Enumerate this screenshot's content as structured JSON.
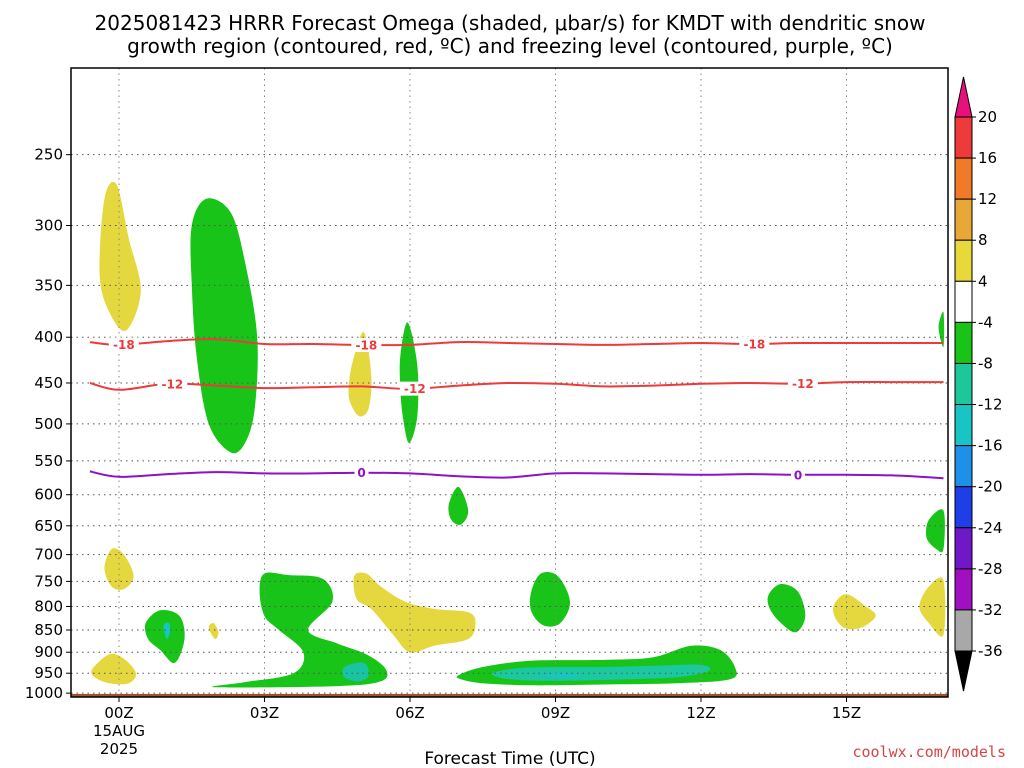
{
  "title_line1": "2025081423 HRRR Forecast Omega (shaded, μbar/s) for KMDT with dendritic snow",
  "title_line2": "growth region (contoured, red, ºC) and freezing level (contoured, purple, ºC)",
  "credit": "coolwx.com/models",
  "chart_data": {
    "type": "time-height cross section",
    "xlabel": "Forecast Time (UTC)",
    "x_ticks": [
      {
        "hour": 0,
        "label": "00Z",
        "sub1": "15AUG",
        "sub2": "2025"
      },
      {
        "hour": 3,
        "label": "03Z"
      },
      {
        "hour": 6,
        "label": "06Z"
      },
      {
        "hour": 9,
        "label": "09Z"
      },
      {
        "hour": 12,
        "label": "12Z"
      },
      {
        "hour": 15,
        "label": "15Z"
      }
    ],
    "xlim": [
      -0.6,
      17
    ],
    "ylabel": "",
    "y_ticks": [
      250,
      300,
      350,
      400,
      450,
      500,
      550,
      600,
      650,
      700,
      750,
      800,
      850,
      900,
      950,
      1000
    ],
    "ylim": [
      1010,
      200
    ],
    "y_scale": "log pressure (hPa)",
    "grid": "dotted",
    "ground_level_hPa": 1000,
    "colorbar": {
      "ticks": [
        "20",
        "16",
        "12",
        "8",
        "4",
        "-4",
        "-8",
        "-12",
        "-16",
        "-20",
        "-24",
        "-28",
        "-32",
        "-36"
      ],
      "colors": [
        "#e8107a",
        "#ee3a3a",
        "#f07a28",
        "#e8a838",
        "#e8d83a",
        "#ffffff",
        "#18c418",
        "#1cc89a",
        "#18c4c4",
        "#1e90e8",
        "#1e3ee8",
        "#7018c8",
        "#a010c0",
        "#a8a8a8",
        "#000000"
      ]
    },
    "omega_regions": [
      {
        "color": "#e5d83e",
        "value": "4 to 8",
        "pts": [
          [
            -0.3,
            280
          ],
          [
            -0.05,
            270
          ],
          [
            0.2,
            310
          ],
          [
            0.45,
            355
          ],
          [
            0.15,
            393
          ],
          [
            -0.2,
            375
          ],
          [
            -0.4,
            340
          ]
        ]
      },
      {
        "color": "#18c418",
        "value": "-4 to -8",
        "pts": [
          [
            1.5,
            300
          ],
          [
            1.8,
            280
          ],
          [
            2.3,
            290
          ],
          [
            2.6,
            330
          ],
          [
            2.85,
            400
          ],
          [
            2.8,
            480
          ],
          [
            2.6,
            525
          ],
          [
            2.3,
            538
          ],
          [
            1.85,
            500
          ],
          [
            1.6,
            420
          ],
          [
            1.5,
            350
          ]
        ]
      },
      {
        "color": "#e5d83e",
        "value": "4 to 8",
        "pts": [
          [
            4.75,
            445
          ],
          [
            4.85,
            420
          ],
          [
            5.05,
            395
          ],
          [
            5.2,
            440
          ],
          [
            5.15,
            480
          ],
          [
            4.95,
            490
          ],
          [
            4.75,
            470
          ]
        ]
      },
      {
        "color": "#18c418",
        "value": "-4 to -8",
        "pts": [
          [
            5.8,
            420
          ],
          [
            5.95,
            385
          ],
          [
            6.15,
            430
          ],
          [
            6.15,
            490
          ],
          [
            5.98,
            525
          ],
          [
            5.85,
            490
          ],
          [
            5.8,
            455
          ]
        ]
      },
      {
        "color": "#18c418",
        "value": "-4 to -8",
        "pts": [
          [
            6.8,
            615
          ],
          [
            7.0,
            588
          ],
          [
            7.2,
            625
          ],
          [
            7.05,
            648
          ],
          [
            6.85,
            640
          ]
        ]
      },
      {
        "color": "#e5d83e",
        "value": "4 to 8",
        "pts": [
          [
            -0.3,
            725
          ],
          [
            -0.15,
            690
          ],
          [
            0.1,
            700
          ],
          [
            0.3,
            740
          ],
          [
            0.1,
            765
          ],
          [
            -0.15,
            760
          ]
        ]
      },
      {
        "color": "#18c418",
        "value": "-4 to -8",
        "pts": [
          [
            0.55,
            835
          ],
          [
            0.85,
            808
          ],
          [
            1.25,
            820
          ],
          [
            1.35,
            870
          ],
          [
            1.15,
            925
          ],
          [
            0.85,
            895
          ],
          [
            0.6,
            870
          ]
        ]
      },
      {
        "color": "#18c4c4",
        "value": "-12 to -16",
        "pts": [
          [
            0.92,
            840
          ],
          [
            1.03,
            835
          ],
          [
            1.05,
            855
          ],
          [
            0.98,
            870
          ]
        ]
      },
      {
        "color": "#e5d83e",
        "value": "4 to 8",
        "pts": [
          [
            1.85,
            845
          ],
          [
            1.95,
            835
          ],
          [
            2.05,
            855
          ],
          [
            1.98,
            870
          ]
        ]
      },
      {
        "color": "#e5d83e",
        "value": "4 to 8",
        "pts": [
          [
            -0.55,
            940
          ],
          [
            -0.2,
            905
          ],
          [
            0.1,
            915
          ],
          [
            0.35,
            950
          ],
          [
            0.2,
            975
          ],
          [
            -0.2,
            975
          ],
          [
            -0.5,
            960
          ]
        ]
      },
      {
        "color": "#18c418",
        "value": "-4 to -8",
        "pts": [
          [
            2.9,
            770
          ],
          [
            3.0,
            735
          ],
          [
            3.5,
            738
          ],
          [
            4.2,
            745
          ],
          [
            4.4,
            790
          ],
          [
            3.9,
            850
          ],
          [
            4.5,
            880
          ],
          [
            5.1,
            905
          ],
          [
            5.5,
            940
          ],
          [
            5.4,
            970
          ],
          [
            4.5,
            982
          ],
          [
            2.0,
            985
          ],
          [
            2.6,
            972
          ],
          [
            3.6,
            950
          ],
          [
            3.8,
            900
          ],
          [
            3.3,
            850
          ],
          [
            3.0,
            820
          ]
        ]
      },
      {
        "color": "#18c4a4",
        "value": "-8 to -12",
        "pts": [
          [
            4.65,
            935
          ],
          [
            5.05,
            925
          ],
          [
            5.15,
            955
          ],
          [
            4.95,
            970
          ],
          [
            4.65,
            960
          ]
        ]
      },
      {
        "color": "#e5d83e",
        "value": "4 to 8",
        "pts": [
          [
            4.85,
            740
          ],
          [
            5.1,
            735
          ],
          [
            5.4,
            760
          ],
          [
            5.9,
            790
          ],
          [
            6.5,
            805
          ],
          [
            7.2,
            812
          ],
          [
            7.35,
            835
          ],
          [
            7.2,
            870
          ],
          [
            6.5,
            885
          ],
          [
            6.0,
            900
          ],
          [
            5.65,
            860
          ],
          [
            5.2,
            805
          ],
          [
            4.9,
            785
          ]
        ]
      },
      {
        "color": "#18c418",
        "value": "-4 to -8",
        "pts": [
          [
            7.0,
            955
          ],
          [
            7.5,
            935
          ],
          [
            8.5,
            920
          ],
          [
            10,
            918
          ],
          [
            11,
            912
          ],
          [
            11.8,
            885
          ],
          [
            12.4,
            895
          ],
          [
            12.7,
            935
          ],
          [
            12.6,
            965
          ],
          [
            11.5,
            975
          ],
          [
            10,
            978
          ],
          [
            8.5,
            980
          ],
          [
            7.5,
            975
          ],
          [
            7.05,
            965
          ]
        ]
      },
      {
        "color": "#1cc8a0",
        "value": "-8 to -12",
        "pts": [
          [
            7.7,
            950
          ],
          [
            8.2,
            938
          ],
          [
            9,
            935
          ],
          [
            10,
            935
          ],
          [
            11,
            932
          ],
          [
            12,
            930
          ],
          [
            12.15,
            945
          ],
          [
            11.5,
            960
          ],
          [
            10.5,
            965
          ],
          [
            9.5,
            968
          ],
          [
            8.5,
            968
          ],
          [
            7.9,
            962
          ]
        ]
      },
      {
        "color": "#18c4c4",
        "value": "-12 to -16",
        "pts": [
          [
            8.6,
            955
          ],
          [
            9.1,
            950
          ],
          [
            9.5,
            955
          ],
          [
            9.1,
            962
          ]
        ]
      },
      {
        "color": "#18c418",
        "value": "-4 to -8",
        "pts": [
          [
            8.5,
            770
          ],
          [
            8.7,
            735
          ],
          [
            9.05,
            740
          ],
          [
            9.3,
            790
          ],
          [
            9.1,
            835
          ],
          [
            8.75,
            840
          ],
          [
            8.5,
            810
          ]
        ]
      },
      {
        "color": "#18c418",
        "value": "-4 to -8",
        "pts": [
          [
            13.4,
            775
          ],
          [
            13.65,
            755
          ],
          [
            14.0,
            770
          ],
          [
            14.15,
            820
          ],
          [
            13.95,
            855
          ],
          [
            13.6,
            830
          ],
          [
            13.4,
            800
          ]
        ]
      },
      {
        "color": "#e5d83e",
        "value": "4 to 8",
        "pts": [
          [
            14.75,
            795
          ],
          [
            15.0,
            775
          ],
          [
            15.4,
            800
          ],
          [
            15.6,
            820
          ],
          [
            15.3,
            845
          ],
          [
            14.95,
            845
          ],
          [
            14.75,
            820
          ]
        ]
      },
      {
        "color": "#e5d83e",
        "value": "4 to 8",
        "pts": [
          [
            17,
            748
          ],
          [
            16.7,
            760
          ],
          [
            16.5,
            800
          ],
          [
            16.7,
            835
          ],
          [
            17,
            860
          ]
        ]
      },
      {
        "color": "#18c418",
        "value": "-4 to -8",
        "pts": [
          [
            17,
            625
          ],
          [
            16.7,
            640
          ],
          [
            16.65,
            670
          ],
          [
            16.85,
            690
          ],
          [
            17,
            690
          ]
        ]
      },
      {
        "color": "#18c418",
        "value": "-4 to -8",
        "pts": [
          [
            17,
            375
          ],
          [
            16.9,
            390
          ],
          [
            17,
            410
          ]
        ]
      }
    ],
    "contours": [
      {
        "name": "-18",
        "color": "#ee3a3a",
        "width": 2,
        "pts": [
          [
            -0.6,
            405
          ],
          [
            0,
            408
          ],
          [
            1,
            404
          ],
          [
            2,
            402
          ],
          [
            3,
            407
          ],
          [
            4,
            407
          ],
          [
            5,
            408
          ],
          [
            6,
            408
          ],
          [
            7,
            405
          ],
          [
            8,
            406
          ],
          [
            9,
            407
          ],
          [
            10,
            408
          ],
          [
            11,
            407
          ],
          [
            12,
            406
          ],
          [
            13,
            407
          ],
          [
            14,
            406
          ],
          [
            15,
            406
          ],
          [
            16,
            406
          ],
          [
            17,
            406
          ]
        ],
        "labels": [
          [
            0.1,
            "-18"
          ],
          [
            5.1,
            "-18"
          ],
          [
            13.1,
            "-18"
          ]
        ]
      },
      {
        "name": "-12",
        "color": "#ee3a3a",
        "width": 2,
        "pts": [
          [
            -0.6,
            450
          ],
          [
            0,
            458
          ],
          [
            1,
            451
          ],
          [
            2,
            453
          ],
          [
            3,
            456
          ],
          [
            4,
            455
          ],
          [
            5,
            454
          ],
          [
            6,
            457
          ],
          [
            7,
            453
          ],
          [
            8,
            450
          ],
          [
            9,
            451
          ],
          [
            10,
            454
          ],
          [
            11,
            453
          ],
          [
            12,
            451
          ],
          [
            13,
            450
          ],
          [
            14,
            451
          ],
          [
            15,
            449
          ],
          [
            16,
            449
          ],
          [
            17,
            449
          ]
        ],
        "labels": [
          [
            1.1,
            "-12"
          ],
          [
            6.1,
            "-12"
          ],
          [
            14.1,
            "-12"
          ]
        ]
      },
      {
        "name": "0",
        "color": "#8e10c8",
        "width": 2,
        "pts": [
          [
            -0.6,
            565
          ],
          [
            0,
            573
          ],
          [
            1,
            569
          ],
          [
            2,
            566
          ],
          [
            3,
            568
          ],
          [
            4,
            568
          ],
          [
            5,
            567
          ],
          [
            6,
            568
          ],
          [
            7,
            572
          ],
          [
            8,
            574
          ],
          [
            9,
            568
          ],
          [
            10,
            568
          ],
          [
            11,
            569
          ],
          [
            12,
            570
          ],
          [
            13,
            569
          ],
          [
            14,
            570
          ],
          [
            15,
            570
          ],
          [
            16,
            571
          ],
          [
            17,
            575
          ]
        ],
        "labels": [
          [
            5,
            "0"
          ],
          [
            14,
            "0"
          ]
        ]
      }
    ]
  }
}
